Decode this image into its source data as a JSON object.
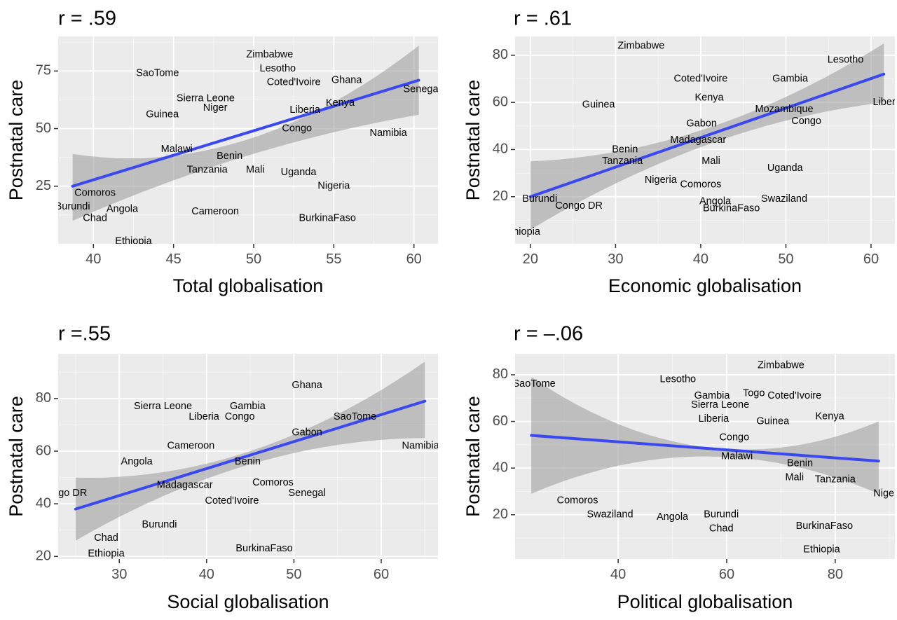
{
  "colors": {
    "panel_bg": "#ebebeb",
    "grid_major": "#ffffff",
    "ribbon": "#999999",
    "fit_line": "#3a48ef",
    "tick": "#333333"
  },
  "chart_data": [
    {
      "type": "scatter",
      "title": "r = .59",
      "xlabel": "Total globalisation",
      "ylabel": "Postnatal care",
      "xlim": [
        37.8,
        61.5
      ],
      "ylim": [
        0,
        90
      ],
      "xticks": [
        40,
        45,
        50,
        55,
        60
      ],
      "yticks": [
        25,
        50,
        75
      ],
      "grid": true,
      "fit": {
        "x0": 38.7,
        "y0": 25,
        "x1": 60.3,
        "y1": 71,
        "lower": [
          10,
          38,
          56
        ],
        "upper": [
          39,
          45,
          86
        ]
      },
      "points": [
        {
          "label": "Zimbabwe",
          "x": 51,
          "y": 82
        },
        {
          "label": "Lesotho",
          "x": 51.5,
          "y": 76
        },
        {
          "label": "SaoTome",
          "x": 44,
          "y": 74
        },
        {
          "label": "Coted'Ivoire",
          "x": 52.5,
          "y": 70
        },
        {
          "label": "Ghana",
          "x": 55.8,
          "y": 71
        },
        {
          "label": "Senegal",
          "x": 60.5,
          "y": 67
        },
        {
          "label": "Sierra Leone",
          "x": 47,
          "y": 63
        },
        {
          "label": "Niger",
          "x": 47.6,
          "y": 59
        },
        {
          "label": "Guinea",
          "x": 44.3,
          "y": 56
        },
        {
          "label": "Liberia",
          "x": 53.2,
          "y": 58
        },
        {
          "label": "Kenya",
          "x": 55.4,
          "y": 61
        },
        {
          "label": "Congo",
          "x": 52.7,
          "y": 50
        },
        {
          "label": "Namibia",
          "x": 58.4,
          "y": 48
        },
        {
          "label": "Malawi",
          "x": 45.2,
          "y": 41
        },
        {
          "label": "Benin",
          "x": 48.5,
          "y": 38
        },
        {
          "label": "Tanzania",
          "x": 47.1,
          "y": 32
        },
        {
          "label": "Mali",
          "x": 50.1,
          "y": 32
        },
        {
          "label": "Uganda",
          "x": 52.8,
          "y": 31
        },
        {
          "label": "Nigeria",
          "x": 55,
          "y": 25
        },
        {
          "label": "Comoros",
          "x": 40.1,
          "y": 22
        },
        {
          "label": "Burundi",
          "x": 38.7,
          "y": 16
        },
        {
          "label": "Angola",
          "x": 41.8,
          "y": 15
        },
        {
          "label": "Chad",
          "x": 40.1,
          "y": 11
        },
        {
          "label": "Cameroon",
          "x": 47.6,
          "y": 14
        },
        {
          "label": "BurkinaFaso",
          "x": 54.6,
          "y": 11
        },
        {
          "label": "Ethiopia",
          "x": 42.5,
          "y": 1
        }
      ]
    },
    {
      "type": "scatter",
      "title": "r = .61",
      "xlabel": "Economic globalisation",
      "ylabel": "Postnatal care",
      "xlim": [
        18.2,
        62.8
      ],
      "ylim": [
        0,
        88
      ],
      "xticks": [
        20,
        30,
        40,
        50,
        60
      ],
      "yticks": [
        20,
        40,
        60,
        80
      ],
      "grid": true,
      "fit": {
        "x0": 20,
        "y0": 20,
        "x1": 61.5,
        "y1": 72,
        "lower": [
          6,
          42,
          60
        ],
        "upper": [
          35,
          49,
          85
        ]
      },
      "points": [
        {
          "label": "Zimbabwe",
          "x": 33,
          "y": 84
        },
        {
          "label": "Lesotho",
          "x": 57,
          "y": 78
        },
        {
          "label": "Coted'Ivoire",
          "x": 40,
          "y": 70
        },
        {
          "label": "Gambia",
          "x": 50.5,
          "y": 70
        },
        {
          "label": "Kenya",
          "x": 41,
          "y": 62
        },
        {
          "label": "Guinea",
          "x": 28,
          "y": 59
        },
        {
          "label": "Liberia",
          "x": 62,
          "y": 60
        },
        {
          "label": "Mozambique",
          "x": 49.8,
          "y": 57
        },
        {
          "label": "Congo",
          "x": 52.4,
          "y": 52
        },
        {
          "label": "Gabon",
          "x": 40.1,
          "y": 51
        },
        {
          "label": "Madagascar",
          "x": 39.7,
          "y": 44
        },
        {
          "label": "Benin",
          "x": 31.1,
          "y": 40
        },
        {
          "label": "Tanzania",
          "x": 30.8,
          "y": 35
        },
        {
          "label": "Mali",
          "x": 41.2,
          "y": 35
        },
        {
          "label": "Uganda",
          "x": 49.9,
          "y": 32
        },
        {
          "label": "Nigeria",
          "x": 35.3,
          "y": 27
        },
        {
          "label": "Comoros",
          "x": 40,
          "y": 25
        },
        {
          "label": "Swaziland",
          "x": 49.8,
          "y": 19
        },
        {
          "label": "Burundi",
          "x": 21.1,
          "y": 19
        },
        {
          "label": "Congo DR",
          "x": 25.7,
          "y": 16
        },
        {
          "label": "Angola",
          "x": 41.7,
          "y": 18
        },
        {
          "label": "BurkinaFaso",
          "x": 43.6,
          "y": 15
        },
        {
          "label": "Ethiopia",
          "x": 19,
          "y": 5
        }
      ]
    },
    {
      "type": "scatter",
      "title": "r =.55",
      "xlabel": "Social globalisation",
      "ylabel": "Postnatal care",
      "xlim": [
        23,
        66.5
      ],
      "ylim": [
        19,
        97
      ],
      "xticks": [
        30,
        40,
        50,
        60
      ],
      "yticks": [
        20,
        40,
        60,
        80
      ],
      "grid": true,
      "fit": {
        "x0": 25,
        "y0": 38,
        "x1": 65,
        "y1": 79,
        "lower": [
          26,
          55,
          65
        ],
        "upper": [
          50,
          60,
          94
        ]
      },
      "points": [
        {
          "label": "Ghana",
          "x": 51.5,
          "y": 85
        },
        {
          "label": "Sierra Leone",
          "x": 35,
          "y": 77
        },
        {
          "label": "Gambia",
          "x": 44.7,
          "y": 77
        },
        {
          "label": "Liberia",
          "x": 39.7,
          "y": 73
        },
        {
          "label": "Congo",
          "x": 43.8,
          "y": 73
        },
        {
          "label": "SaoTome",
          "x": 57,
          "y": 73
        },
        {
          "label": "Gabon",
          "x": 51.5,
          "y": 67
        },
        {
          "label": "Namibia",
          "x": 64.5,
          "y": 62
        },
        {
          "label": "Cameroon",
          "x": 38.2,
          "y": 62
        },
        {
          "label": "Angola",
          "x": 32,
          "y": 56
        },
        {
          "label": "Benin",
          "x": 44.7,
          "y": 56
        },
        {
          "label": "Madagascar",
          "x": 37.5,
          "y": 47
        },
        {
          "label": "Comoros",
          "x": 47.6,
          "y": 48
        },
        {
          "label": "Senegal",
          "x": 51.5,
          "y": 44
        },
        {
          "label": "Coted'Ivoire",
          "x": 42.9,
          "y": 41
        },
        {
          "label": "Congo DR",
          "x": 23.6,
          "y": 44
        },
        {
          "label": "Burundi",
          "x": 34.6,
          "y": 32
        },
        {
          "label": "Chad",
          "x": 28.5,
          "y": 27
        },
        {
          "label": "Ethiopia",
          "x": 28.5,
          "y": 21
        },
        {
          "label": "BurkinaFaso",
          "x": 46.6,
          "y": 23
        }
      ]
    },
    {
      "type": "scatter",
      "title": "r = –.06",
      "xlabel": "Political globalisation",
      "ylabel": "Postnatal care",
      "xlim": [
        21,
        91
      ],
      "ylim": [
        1,
        89
      ],
      "xticks": [
        40,
        60,
        80
      ],
      "yticks": [
        20,
        40,
        60,
        80
      ],
      "grid": true,
      "fit": {
        "x0": 24,
        "y0": 54,
        "x1": 88,
        "y1": 43,
        "lower": [
          29,
          45,
          29
        ],
        "upper": [
          79,
          49,
          60
        ]
      },
      "points": [
        {
          "label": "Zimbabwe",
          "x": 70,
          "y": 84
        },
        {
          "label": "Lesotho",
          "x": 51,
          "y": 78
        },
        {
          "label": "SaoTome",
          "x": 24.5,
          "y": 76
        },
        {
          "label": "Gambia",
          "x": 57.3,
          "y": 71
        },
        {
          "label": "Togo",
          "x": 65,
          "y": 72
        },
        {
          "label": "Coted'Ivoire",
          "x": 72.5,
          "y": 71
        },
        {
          "label": "Sierra Leone",
          "x": 58.8,
          "y": 67
        },
        {
          "label": "Kenya",
          "x": 79,
          "y": 62
        },
        {
          "label": "Liberia",
          "x": 57.6,
          "y": 61
        },
        {
          "label": "Guinea",
          "x": 68.5,
          "y": 60
        },
        {
          "label": "Congo",
          "x": 61.4,
          "y": 53
        },
        {
          "label": "Malawi",
          "x": 61.9,
          "y": 45
        },
        {
          "label": "Benin",
          "x": 73.5,
          "y": 42
        },
        {
          "label": "Mali",
          "x": 72.5,
          "y": 36
        },
        {
          "label": "Tanzania",
          "x": 80,
          "y": 35
        },
        {
          "label": "Nigeria",
          "x": 90,
          "y": 29
        },
        {
          "label": "Comoros",
          "x": 32.5,
          "y": 26
        },
        {
          "label": "Swaziland",
          "x": 38.5,
          "y": 20
        },
        {
          "label": "Angola",
          "x": 50,
          "y": 19
        },
        {
          "label": "Burundi",
          "x": 59,
          "y": 20
        },
        {
          "label": "Chad",
          "x": 59,
          "y": 14
        },
        {
          "label": "BurkinaFaso",
          "x": 78,
          "y": 15
        },
        {
          "label": "Ethiopia",
          "x": 77.5,
          "y": 5
        }
      ]
    }
  ]
}
